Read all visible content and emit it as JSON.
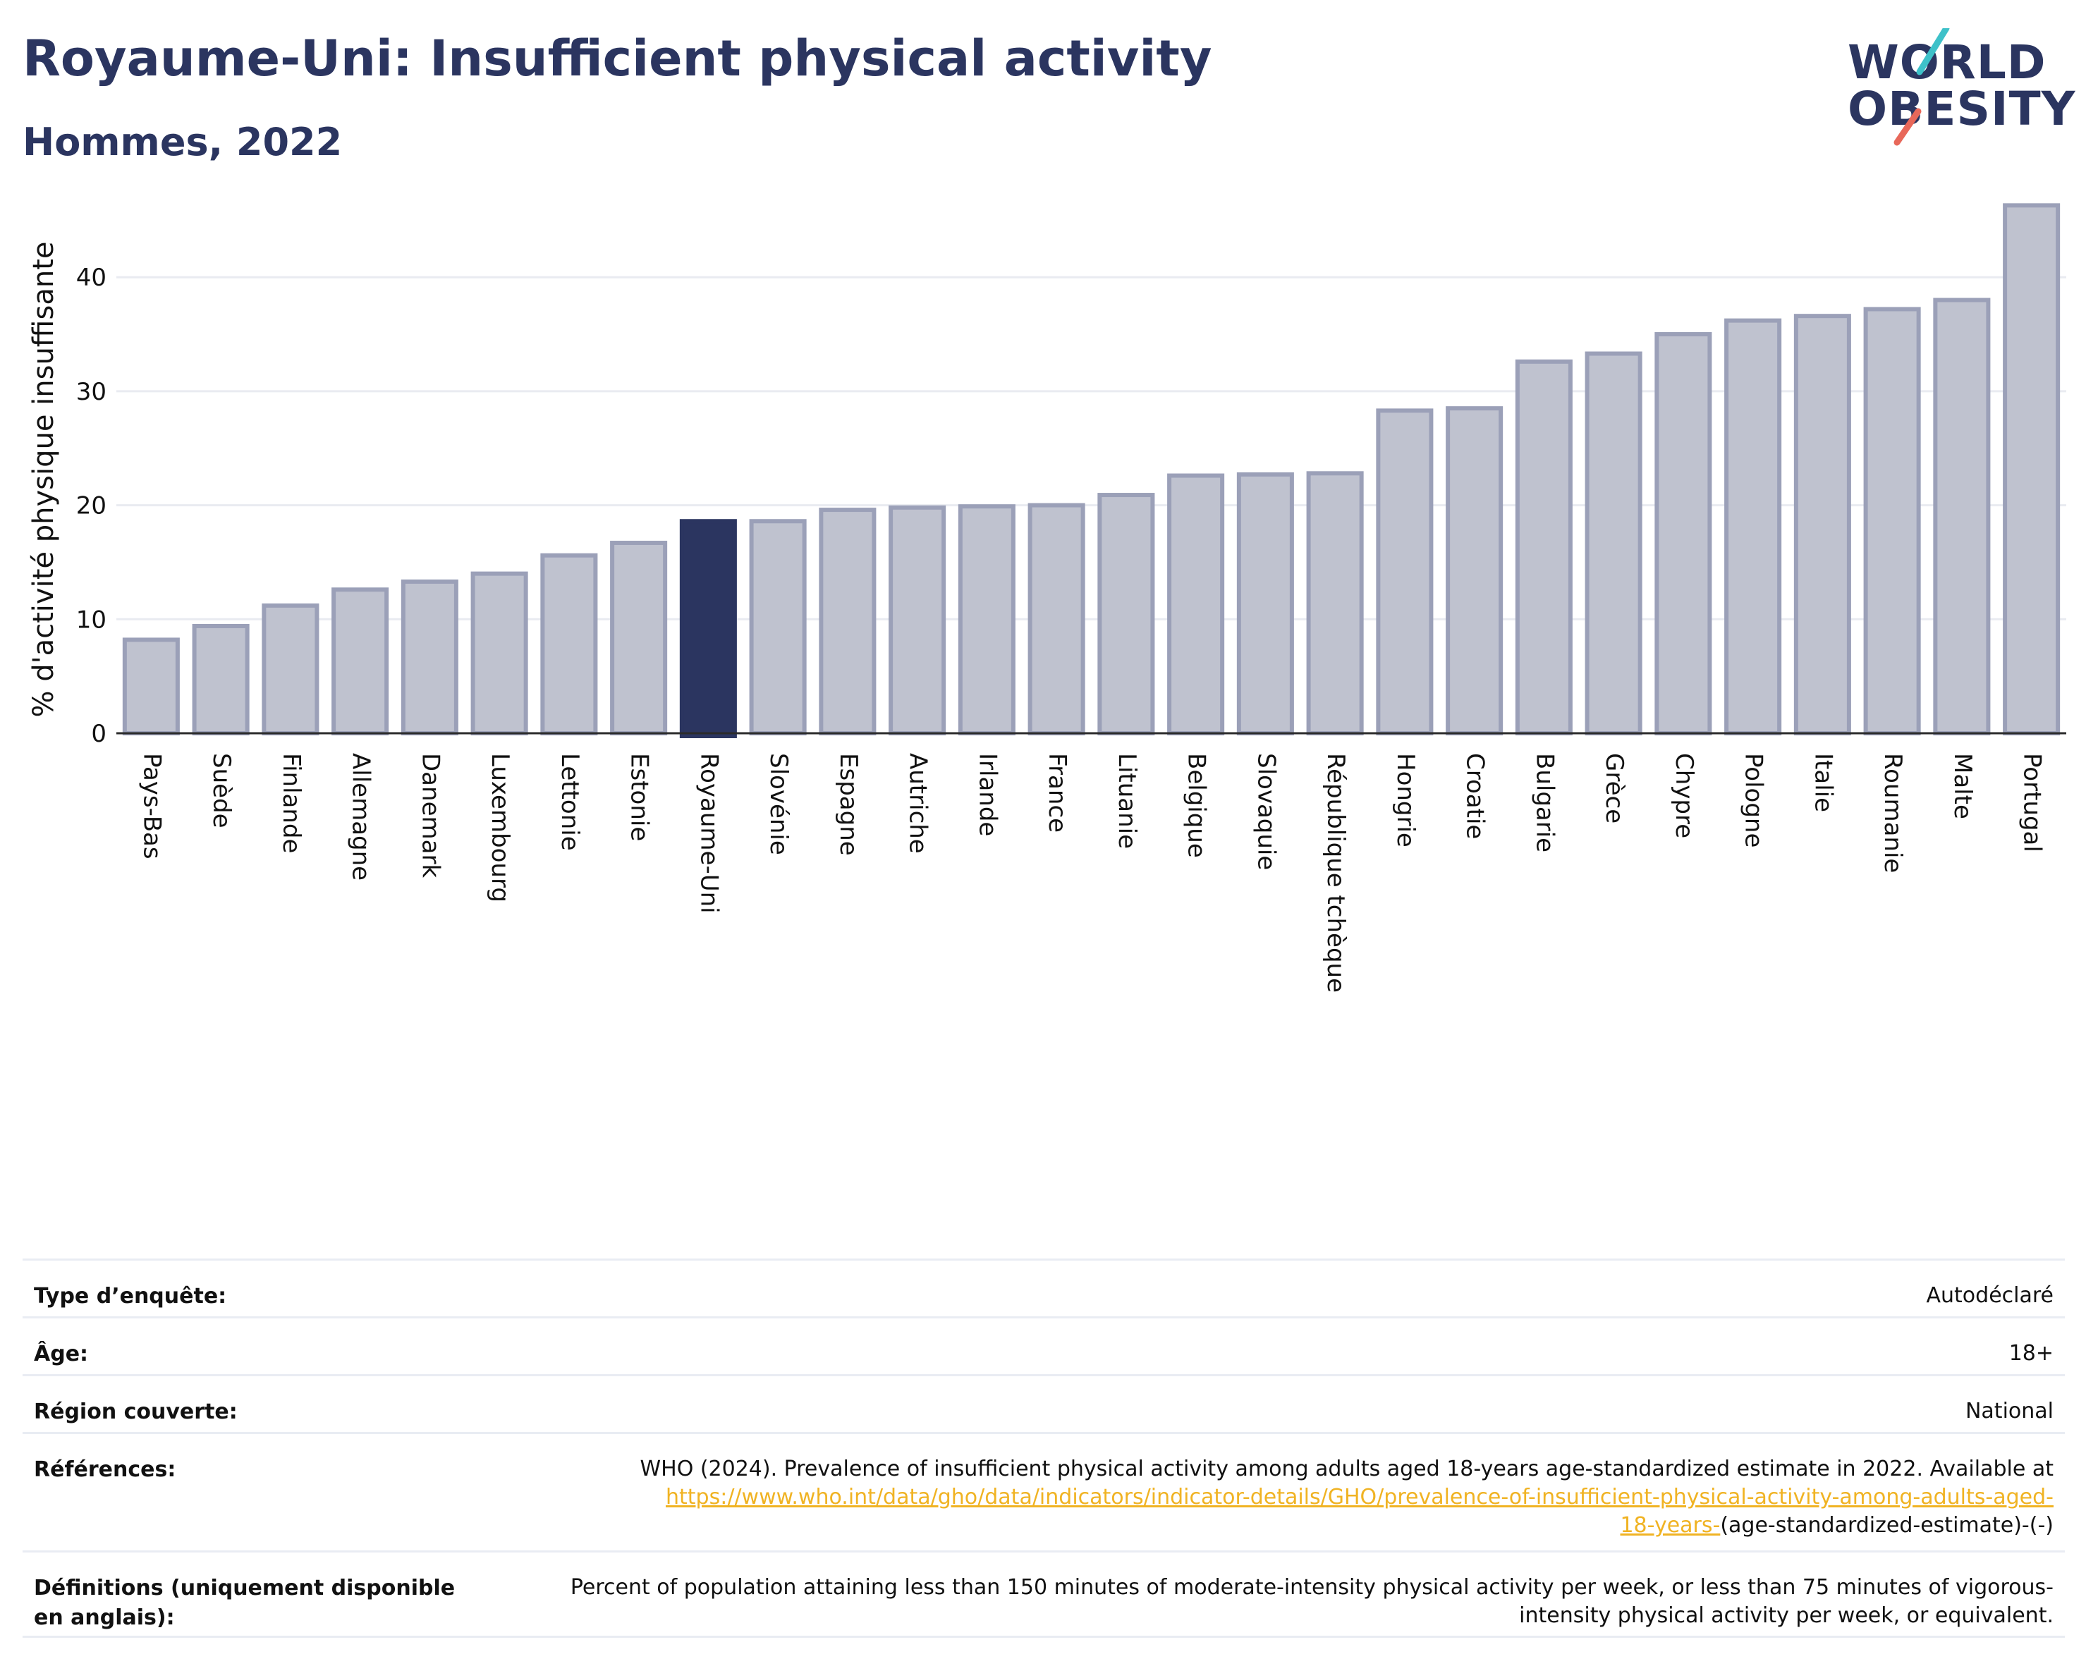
{
  "header": {
    "title": "Royaume-Uni: Insufficient physical activity",
    "subtitle": "Hommes, 2022"
  },
  "logo": {
    "line1": "WORLD",
    "line2": "OBESITY",
    "accent1": "#3ec1c9",
    "accent2": "#e8685a"
  },
  "colors": {
    "bar": "#bfc2cf",
    "bar_edge": "#9ba0b8",
    "highlight": "#2b3560",
    "axis": "#2b2b2b",
    "grid": "#e9ebf1"
  },
  "chart_data": {
    "type": "bar",
    "ylabel": "% d'activité physique insuffisante",
    "ylim": [
      0,
      47
    ],
    "yticks": [
      0,
      10,
      20,
      30,
      40
    ],
    "highlight": "Royaume-Uni",
    "categories": [
      "Pays-Bas",
      "Suède",
      "Finlande",
      "Allemagne",
      "Danemark",
      "Luxembourg",
      "Lettonie",
      "Estonie",
      "Royaume-Uni",
      "Slovénie",
      "Espagne",
      "Autriche",
      "Irlande",
      "France",
      "Lituanie",
      "Belgique",
      "Slovaquie",
      "République tchèque",
      "Hongrie",
      "Croatie",
      "Bulgarie",
      "Grèce",
      "Chypre",
      "Pologne",
      "Italie",
      "Roumanie",
      "Malte",
      "Portugal"
    ],
    "values": [
      8.2,
      9.4,
      11.2,
      12.6,
      13.3,
      14.0,
      15.6,
      16.7,
      18.6,
      18.6,
      19.6,
      19.8,
      19.9,
      20.0,
      20.9,
      22.6,
      22.7,
      22.8,
      28.3,
      28.5,
      32.6,
      33.3,
      35.0,
      36.2,
      36.6,
      37.2,
      38.0,
      46.3
    ]
  },
  "info": {
    "survey_label": "Type d’enquête:",
    "survey_value": "Autodéclaré",
    "age_label": "Âge:",
    "age_value": "18+",
    "region_label": "Région couverte:",
    "region_value": "National",
    "ref_label": "Références:",
    "ref_text": "WHO (2024). Prevalence of insufficient physical activity among adults aged 18-years age-standardized estimate in 2022. Available at",
    "ref_link_1": "https://www.who.int/data/gho/data/indicators/indicator-details/GHO/prevalence-of-insufficient-physical-activity-among-adults-aged-",
    "ref_link_2": "18-years-",
    "ref_tail": "(age-standardized-estimate)-(-)",
    "def_label": "Définitions (uniquement disponible en anglais):",
    "def_text": "Percent of population attaining less than 150 minutes of moderate-intensity physical activity per week, or less than 75 minutes of vigorous-intensity physical activity per week, or equivalent."
  }
}
